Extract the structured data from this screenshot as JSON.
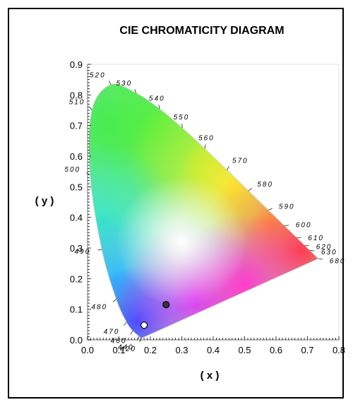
{
  "chart_data": {
    "type": "scatter",
    "title": "CIE CHROMATICITY DIAGRAM",
    "xlabel": "( x )",
    "ylabel": "( y )",
    "xlim": [
      0.0,
      0.8
    ],
    "ylim": [
      0.0,
      0.9
    ],
    "x_ticks": [
      "0.0",
      "0.1",
      "0.2",
      "0.3",
      "0.4",
      "0.5",
      "0.6",
      "0.7",
      "0.8"
    ],
    "y_ticks": [
      "0.0",
      "0.1",
      "0.2",
      "0.3",
      "0.4",
      "0.5",
      "0.6",
      "0.7",
      "0.8",
      "0.9"
    ],
    "grid": false,
    "spectral_locus": [
      {
        "wl": "420",
        "x": 0.1714,
        "y": 0.0051
      },
      {
        "wl": "440",
        "x": 0.1644,
        "y": 0.0109
      },
      {
        "wl": "460",
        "x": 0.144,
        "y": 0.0297
      },
      {
        "wl": "470",
        "x": 0.1241,
        "y": 0.0578
      },
      {
        "wl": "480",
        "x": 0.0913,
        "y": 0.1327
      },
      {
        "wl": "490",
        "x": 0.0454,
        "y": 0.295
      },
      {
        "wl": "500",
        "x": 0.0082,
        "y": 0.5384
      },
      {
        "wl": "510",
        "x": 0.0139,
        "y": 0.7502
      },
      {
        "wl": "520",
        "x": 0.0743,
        "y": 0.8338
      },
      {
        "wl": "530",
        "x": 0.1547,
        "y": 0.8059
      },
      {
        "wl": "540",
        "x": 0.2296,
        "y": 0.7543
      },
      {
        "wl": "550",
        "x": 0.3016,
        "y": 0.6923
      },
      {
        "wl": "560",
        "x": 0.3731,
        "y": 0.6245
      },
      {
        "wl": "570",
        "x": 0.4441,
        "y": 0.5547
      },
      {
        "wl": "580",
        "x": 0.5125,
        "y": 0.4866
      },
      {
        "wl": "590",
        "x": 0.5752,
        "y": 0.4242
      },
      {
        "wl": "600",
        "x": 0.627,
        "y": 0.3725
      },
      {
        "wl": "610",
        "x": 0.6658,
        "y": 0.334
      },
      {
        "wl": "620",
        "x": 0.6915,
        "y": 0.3083
      },
      {
        "wl": "630",
        "x": 0.7079,
        "y": 0.292
      },
      {
        "wl": "680",
        "x": 0.7347,
        "y": 0.2653
      }
    ],
    "points": [
      {
        "x": 0.25,
        "y": 0.115,
        "fill": "#333333"
      },
      {
        "x": 0.18,
        "y": 0.048,
        "fill": "#ffffff"
      }
    ]
  }
}
